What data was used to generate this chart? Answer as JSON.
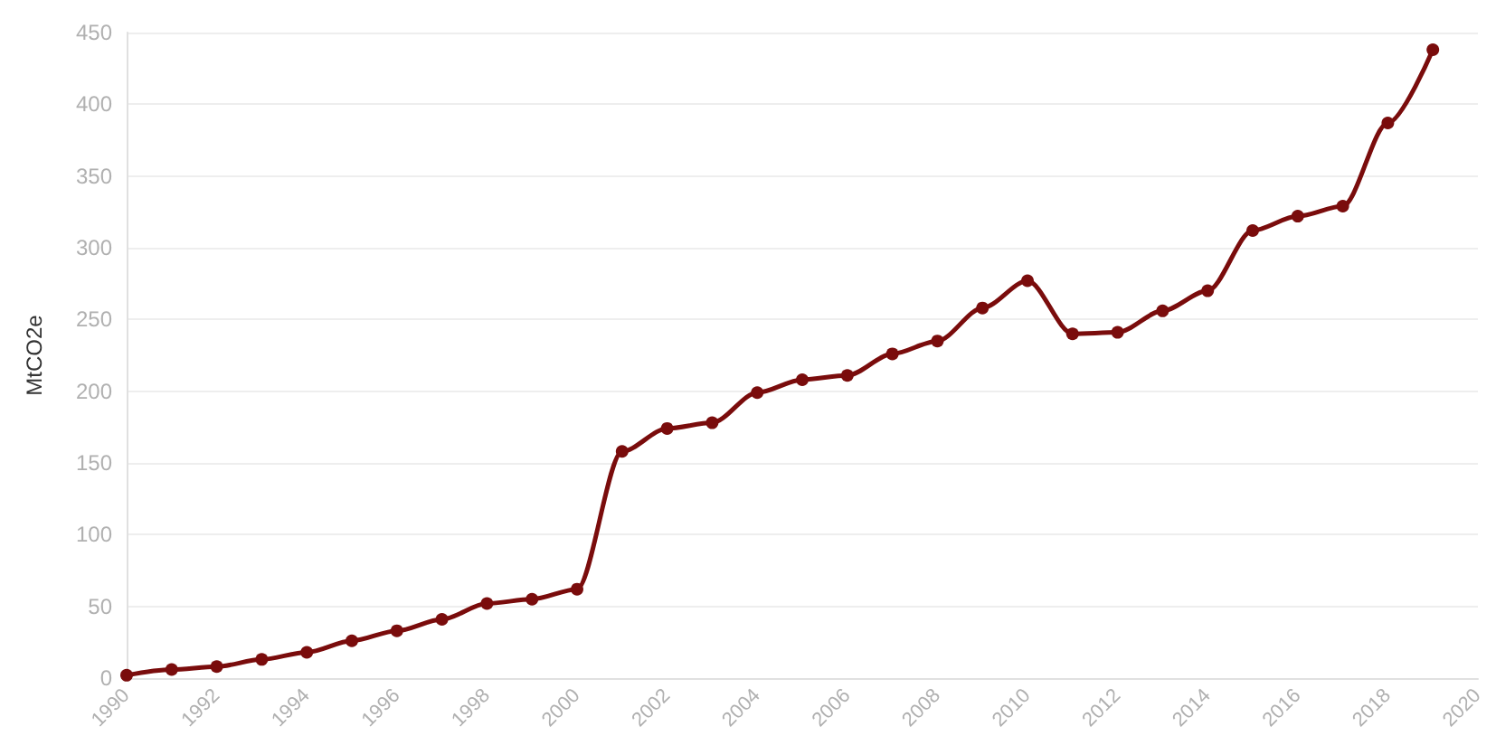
{
  "chart_data": {
    "type": "line",
    "ylabel": "MtCO2e",
    "x": [
      1990,
      1991,
      1992,
      1993,
      1994,
      1995,
      1996,
      1997,
      1998,
      1999,
      2000,
      2001,
      2002,
      2003,
      2004,
      2005,
      2006,
      2007,
      2008,
      2009,
      2010,
      2011,
      2012,
      2013,
      2014,
      2015,
      2016,
      2017,
      2018,
      2019
    ],
    "series": [
      {
        "color": "#7a0c0c",
        "values": [
          2,
          6,
          8,
          13,
          18,
          26,
          33,
          41,
          52,
          55,
          62,
          158,
          174,
          178,
          199,
          208,
          211,
          226,
          235,
          258,
          277,
          240,
          241,
          256,
          270,
          312,
          322,
          329,
          387,
          438
        ]
      }
    ],
    "xlim": [
      1990,
      2020
    ],
    "xticks": [
      1990,
      1992,
      1994,
      1996,
      1998,
      2000,
      2002,
      2004,
      2006,
      2008,
      2010,
      2012,
      2014,
      2016,
      2018,
      2020
    ],
    "ylim": [
      0,
      450
    ],
    "yticks": [
      0,
      50,
      100,
      150,
      200,
      250,
      300,
      350,
      400,
      450
    ],
    "grid": "y",
    "marker": "circle",
    "line_style": "solid"
  }
}
